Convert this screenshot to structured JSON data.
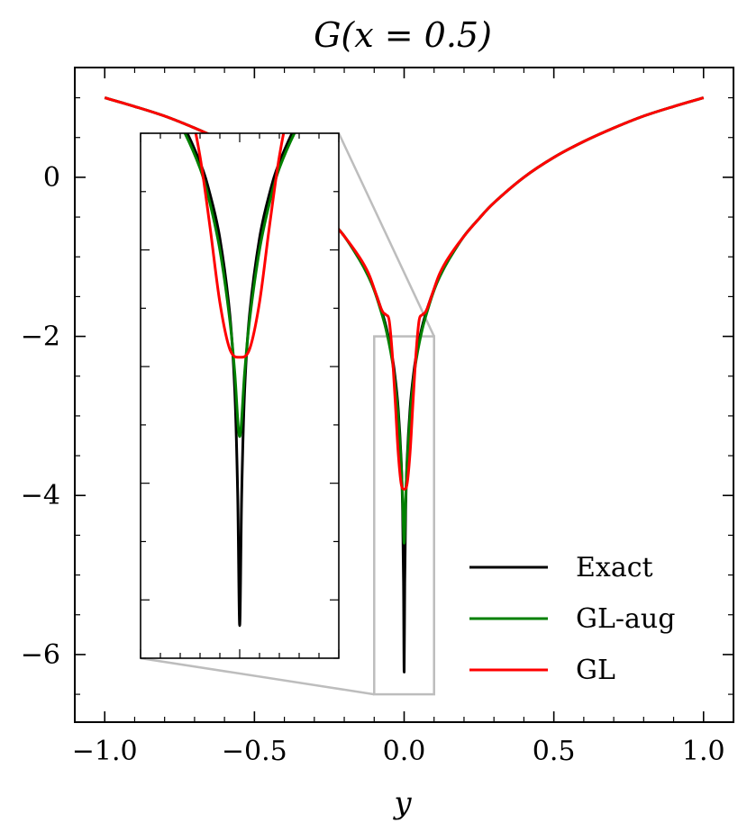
{
  "chart_data": {
    "type": "line",
    "title": "G(x = 0.5)",
    "xlabel": "y",
    "ylabel": "",
    "xlim": [
      -1.1,
      1.1
    ],
    "ylim": [
      -6.85,
      1.38
    ],
    "xticks": [
      -1.0,
      -0.5,
      0.0,
      0.5,
      1.0
    ],
    "xtick_labels": [
      "−1.0",
      "−0.5",
      "0.0",
      "0.5",
      "1.0"
    ],
    "yticks": [
      0,
      -2,
      -4,
      -6
    ],
    "ytick_labels": [
      "0",
      "−2",
      "−4",
      "−6"
    ],
    "legend_position": "bottom-right",
    "series": [
      {
        "name": "Exact",
        "color": "#000000",
        "x": [
          -1.0,
          -0.9,
          -0.8,
          -0.7,
          -0.6,
          -0.5,
          -0.4,
          -0.3,
          -0.25,
          -0.2,
          -0.15,
          -0.12,
          -0.1,
          -0.08,
          -0.06,
          -0.04,
          -0.03,
          -0.02,
          -0.01,
          -0.005,
          -0.002,
          0.0,
          0.002,
          0.005,
          0.01,
          0.02,
          0.03,
          0.04,
          0.06,
          0.08,
          0.1,
          0.12,
          0.15,
          0.2,
          0.25,
          0.3,
          0.4,
          0.5,
          0.6,
          0.7,
          0.8,
          0.9,
          1.0
        ],
        "y": [
          1.0,
          0.89,
          0.77,
          0.62,
          0.45,
          0.25,
          0.0,
          -0.32,
          -0.52,
          -0.74,
          -1.03,
          -1.24,
          -1.41,
          -1.62,
          -1.88,
          -2.25,
          -2.52,
          -2.9,
          -3.55,
          -4.2,
          -5.1,
          -6.22,
          -5.1,
          -4.2,
          -3.55,
          -2.9,
          -2.52,
          -2.25,
          -1.88,
          -1.62,
          -1.41,
          -1.24,
          -1.03,
          -0.74,
          -0.52,
          -0.32,
          0.0,
          0.25,
          0.45,
          0.62,
          0.77,
          0.89,
          1.0
        ]
      },
      {
        "name": "GL-aug",
        "color": "#008000",
        "x": [
          -1.0,
          -0.9,
          -0.8,
          -0.7,
          -0.6,
          -0.5,
          -0.4,
          -0.3,
          -0.25,
          -0.2,
          -0.15,
          -0.12,
          -0.1,
          -0.08,
          -0.06,
          -0.04,
          -0.03,
          -0.02,
          -0.01,
          -0.005,
          0.0,
          0.005,
          0.01,
          0.02,
          0.03,
          0.04,
          0.06,
          0.08,
          0.1,
          0.12,
          0.15,
          0.2,
          0.25,
          0.3,
          0.4,
          0.5,
          0.6,
          0.7,
          0.8,
          0.9,
          1.0
        ],
        "y": [
          1.0,
          0.89,
          0.77,
          0.62,
          0.45,
          0.25,
          0.0,
          -0.32,
          -0.52,
          -0.74,
          -1.03,
          -1.24,
          -1.42,
          -1.65,
          -1.92,
          -2.3,
          -2.6,
          -3.0,
          -3.6,
          -4.05,
          -4.6,
          -4.05,
          -3.6,
          -3.0,
          -2.6,
          -2.3,
          -1.92,
          -1.65,
          -1.42,
          -1.24,
          -1.03,
          -0.74,
          -0.52,
          -0.32,
          0.0,
          0.25,
          0.45,
          0.62,
          0.77,
          0.89,
          1.0
        ]
      },
      {
        "name": "GL",
        "color": "#ff0000",
        "x": [
          -1.0,
          -0.9,
          -0.8,
          -0.7,
          -0.6,
          -0.5,
          -0.4,
          -0.3,
          -0.25,
          -0.2,
          -0.15,
          -0.12,
          -0.1,
          -0.08,
          -0.07,
          -0.06,
          -0.05,
          -0.04,
          -0.03,
          -0.02,
          -0.01,
          0.0,
          0.01,
          0.02,
          0.03,
          0.04,
          0.05,
          0.06,
          0.07,
          0.08,
          0.1,
          0.12,
          0.15,
          0.2,
          0.25,
          0.3,
          0.4,
          0.5,
          0.6,
          0.7,
          0.8,
          0.9,
          1.0
        ],
        "y": [
          1.0,
          0.89,
          0.77,
          0.62,
          0.45,
          0.25,
          0.0,
          -0.32,
          -0.52,
          -0.74,
          -1.0,
          -1.2,
          -1.4,
          -1.62,
          -1.7,
          -1.73,
          -1.8,
          -2.2,
          -2.8,
          -3.45,
          -3.85,
          -3.92,
          -3.85,
          -3.45,
          -2.8,
          -2.2,
          -1.8,
          -1.73,
          -1.7,
          -1.62,
          -1.4,
          -1.2,
          -1.0,
          -0.74,
          -0.52,
          -0.32,
          0.0,
          0.25,
          0.45,
          0.62,
          0.77,
          0.89,
          1.0
        ]
      }
    ],
    "inset": {
      "xlim": [
        -0.1,
        0.1
      ],
      "ylim": [
        -6.5,
        -2.0
      ]
    }
  }
}
